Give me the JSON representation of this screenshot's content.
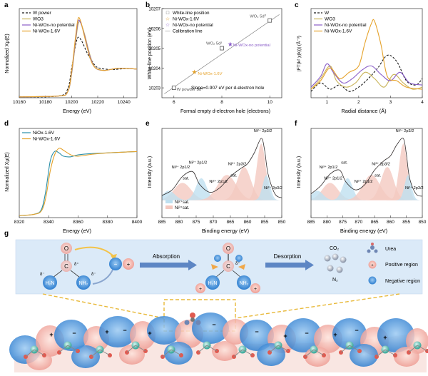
{
  "colors": {
    "black": "#1a1a1a",
    "wo3": "#c9b45a",
    "purple": "#8a5ec8",
    "orange": "#e5a22a",
    "teal": "#2a8fa8",
    "lightblue": "#bfe0f0",
    "lightpink": "#f4c9c0",
    "blue_lobe": "#2f7fd0",
    "pink_lobe": "#f0b9b0"
  },
  "panels": {
    "a": {
      "letter": "a",
      "legend": [
        "W power",
        "WO3",
        "Ni-WOx-no potential",
        "Ni-WOx-1.6V"
      ],
      "xlabel": "Energy (eV)",
      "ylabel": "Normalized Xμ(E)"
    },
    "b": {
      "letter": "b",
      "legend": [
        "White-line position",
        "Ni-WOx-1.6V",
        "Ni-WOx-no potential",
        "Calibration line"
      ],
      "xlabel": "Formal empty d-electron hole (electrons)",
      "ylabel": "White-line position (eV)",
      "slope_text": "Slope=0.907 eV per d-electron hole",
      "point_labels": [
        "W powder 5d⁴",
        "WO₂ 5d²",
        "WO₃ 5d⁰",
        "Ni-WOx-no potential",
        "Ni-WOx-1.6V"
      ]
    },
    "c": {
      "letter": "c",
      "legend": [
        "W",
        "WO3",
        "Ni-WOx-no potential",
        "Ni-WOx-1.6V"
      ],
      "xlabel": "Radial distance (Å)",
      "ylabel": "|FT(k² χ(k))| (Å⁻³)"
    },
    "d": {
      "letter": "d",
      "legend": [
        "NiOx-1.6V",
        "Ni-WOx-1.6V"
      ],
      "xlabel": "Energy (eV)",
      "ylabel": "Normalized Xμ(E)"
    },
    "e": {
      "letter": "e",
      "xlabel": "Binding energy (eV)",
      "ylabel": "Intensity (a.u.)",
      "legend": [
        "Ni²⁺sat.",
        "Ni³⁺sat."
      ],
      "peak_labels": [
        "Ni³⁺ 2p1/2",
        "Ni²⁺ 2p1/2",
        "sat.",
        "Ni²⁺ 2p1/2",
        "Ni³⁺ 2p3/2",
        "sat.",
        "Ni²⁺ 2p3/2",
        "Ni²⁺ 2p3/2"
      ]
    },
    "f": {
      "letter": "f",
      "xlabel": "Binding energy (eV)",
      "ylabel": "Intensity (a.u.)",
      "peak_labels": [
        "Ni³⁺ 2p1/2",
        "sat.",
        "Ni²⁺ 2p1/2",
        "Ni²⁺ 2p1/2",
        "Ni³⁺ 2p3/2",
        "sat.",
        "Ni²⁺ 2p3/2",
        "Ni²⁺ 2p3/2"
      ]
    },
    "g": {
      "letter": "g",
      "absorption": "Absorption",
      "desorption": "Desorption",
      "co2": "CO₂",
      "n2": "N₂",
      "legend_urea": "Urea",
      "legend_positive": "Positive region",
      "legend_negative": "Negative region",
      "atoms": {
        "o": "O",
        "c": "C",
        "h2n": "H₂N",
        "nh2": "NH₂",
        "delta_minus": "δ⁻",
        "delta_plus": "δ⁺",
        "plus": "+",
        "minus": "−"
      }
    }
  },
  "chart_data": [
    {
      "panel": "a",
      "type": "line",
      "xlabel": "Energy (eV)",
      "ylabel": "Normalized Xμ(E)",
      "xlim": [
        10160,
        10250
      ],
      "ylim": [
        0,
        3.1
      ],
      "xticks": [
        10160,
        10180,
        10200,
        10220,
        10240
      ],
      "series": [
        {
          "name": "W power",
          "style": "dash",
          "color": "#1a1a1a",
          "x": [
            10160,
            10190,
            10197,
            10200,
            10203,
            10205,
            10208,
            10212,
            10216,
            10220,
            10230,
            10240,
            10250
          ],
          "y": [
            0.03,
            0.06,
            0.3,
            1.0,
            1.8,
            2.1,
            1.95,
            1.55,
            1.25,
            1.05,
            0.98,
            1.01,
            1.0
          ]
        },
        {
          "name": "WO3",
          "style": "solid",
          "color": "#c9b45a",
          "x": [
            10160,
            10190,
            10197,
            10200,
            10203,
            10205,
            10207,
            10210,
            10214,
            10218,
            10225,
            10235,
            10250
          ],
          "y": [
            0.03,
            0.06,
            0.2,
            0.8,
            1.9,
            2.55,
            2.6,
            2.2,
            1.5,
            1.05,
            0.95,
            1.02,
            1.0
          ]
        },
        {
          "name": "Ni-WOx-no potential",
          "style": "solid",
          "color": "#8a5ec8",
          "x": [
            10160,
            10190,
            10197,
            10200,
            10203,
            10205,
            10207,
            10210,
            10214,
            10218,
            10225,
            10235,
            10250
          ],
          "y": [
            0.03,
            0.06,
            0.2,
            0.85,
            2.0,
            2.65,
            2.6,
            2.15,
            1.45,
            1.05,
            0.95,
            1.02,
            1.0
          ]
        },
        {
          "name": "Ni-WOx-1.6V",
          "style": "solid",
          "color": "#e5a22a",
          "x": [
            10160,
            10190,
            10197,
            10200,
            10203,
            10205,
            10207,
            10210,
            10214,
            10218,
            10225,
            10235,
            10250
          ],
          "y": [
            0.03,
            0.06,
            0.2,
            0.9,
            2.1,
            2.75,
            2.65,
            2.1,
            1.4,
            1.05,
            0.95,
            1.02,
            1.0
          ]
        }
      ]
    },
    {
      "panel": "b",
      "type": "scatter",
      "xlabel": "Formal empty d-electron hole (electrons)",
      "ylabel": "White-line position (eV)",
      "xlim": [
        5.5,
        10.5
      ],
      "ylim": [
        10202.5,
        10207
      ],
      "xticks": [
        6,
        8,
        10
      ],
      "yticks": [
        10203,
        10204,
        10205,
        10206,
        10207
      ],
      "points": [
        {
          "name": "W powder 5d⁴",
          "x": 6,
          "y": 10203
        },
        {
          "name": "WO₂ 5d²",
          "x": 8,
          "y": 10205
        },
        {
          "name": "WO₃ 5d⁰",
          "x": 10,
          "y": 10206.4
        },
        {
          "name": "Ni-WOx-no potential",
          "x": 8.35,
          "y": 10205.2
        },
        {
          "name": "Ni-WOx-1.6V",
          "x": 6.85,
          "y": 10203.8
        }
      ],
      "calibration_line": {
        "x": [
          5.6,
          10.4
        ],
        "y": [
          10202.7,
          10206.7
        ]
      }
    },
    {
      "panel": "c",
      "type": "line",
      "xlabel": "Radial distance (Å)",
      "ylabel": "|FT(k² χ(k))| (Å⁻³)",
      "xlim": [
        0.5,
        4
      ],
      "ylim": [
        0,
        4.2
      ],
      "xticks": [
        1,
        2,
        3,
        4
      ],
      "series": [
        {
          "name": "W",
          "style": "dash",
          "color": "#1a1a1a",
          "x": [
            0.5,
            0.8,
            1.1,
            1.4,
            1.7,
            2.0,
            2.3,
            2.6,
            2.9,
            3.2,
            3.5,
            3.8,
            4.0
          ],
          "y": [
            0.3,
            0.7,
            0.4,
            0.6,
            0.3,
            0.5,
            0.9,
            1.4,
            2.0,
            1.7,
            0.8,
            0.6,
            0.9
          ]
        },
        {
          "name": "WO3",
          "style": "solid",
          "color": "#c9b45a",
          "x": [
            0.5,
            0.8,
            1.1,
            1.3,
            1.6,
            1.9,
            2.2,
            2.5,
            2.8,
            3.1,
            3.4,
            3.7,
            4.0
          ],
          "y": [
            0.4,
            0.9,
            1.5,
            0.8,
            0.5,
            0.7,
            1.2,
            0.9,
            0.5,
            1.1,
            0.7,
            0.4,
            0.5
          ]
        },
        {
          "name": "Ni-WOx-no potential",
          "style": "solid",
          "color": "#8a5ec8",
          "x": [
            0.5,
            0.8,
            1.0,
            1.2,
            1.5,
            1.8,
            2.1,
            2.4,
            2.7,
            3.0,
            3.3,
            3.6,
            4.0
          ],
          "y": [
            0.5,
            1.0,
            1.6,
            1.2,
            0.7,
            0.9,
            1.3,
            1.5,
            1.1,
            0.8,
            1.2,
            0.7,
            0.6
          ]
        },
        {
          "name": "Ni-WOx-1.6V",
          "style": "solid",
          "color": "#e5a22a",
          "x": [
            0.5,
            0.8,
            1.1,
            1.4,
            1.7,
            2.0,
            2.2,
            2.4,
            2.5,
            2.7,
            2.9,
            3.2,
            3.5,
            4.0
          ],
          "y": [
            0.4,
            0.8,
            1.4,
            0.9,
            1.2,
            1.5,
            2.6,
            3.5,
            3.6,
            2.5,
            1.0,
            0.8,
            0.5,
            0.4
          ]
        }
      ]
    },
    {
      "panel": "d",
      "type": "line",
      "xlabel": "Energy (eV)",
      "ylabel": "Normalized Xμ(E)",
      "xlim": [
        8320,
        8400
      ],
      "ylim": [
        0,
        1.35
      ],
      "xticks": [
        8320,
        8340,
        8360,
        8380,
        8400
      ],
      "series": [
        {
          "name": "NiOx-1.6V",
          "style": "solid",
          "color": "#2a8fa8",
          "x": [
            8320,
            8330,
            8335,
            8338,
            8341,
            8344,
            8347,
            8350,
            8355,
            8360,
            8370,
            8380,
            8390,
            8400
          ],
          "y": [
            0.03,
            0.05,
            0.12,
            0.4,
            0.85,
            1.0,
            0.98,
            0.93,
            0.92,
            0.95,
            0.97,
            0.98,
            0.99,
            1.0
          ]
        },
        {
          "name": "Ni-WOx-1.6V",
          "style": "solid",
          "color": "#e5a22a",
          "x": [
            8320,
            8330,
            8335,
            8338,
            8341,
            8344,
            8347,
            8350,
            8355,
            8360,
            8370,
            8380,
            8390,
            8400
          ],
          "y": [
            0.03,
            0.05,
            0.1,
            0.3,
            0.7,
            0.95,
            1.05,
            1.02,
            0.95,
            0.93,
            0.96,
            0.98,
            0.99,
            1.0
          ]
        }
      ]
    },
    {
      "panel": "e",
      "type": "line",
      "xlabel": "Binding energy (eV)",
      "ylabel": "Intensity (a.u.)",
      "xlim": [
        885,
        850
      ],
      "xticks": [
        885,
        880,
        875,
        870,
        865,
        860,
        855,
        850
      ],
      "series": [
        {
          "name": "spectrum",
          "x": [
            885,
            882,
            879,
            876,
            874,
            871,
            868,
            865,
            862,
            860,
            858,
            856,
            855,
            854,
            852,
            850
          ],
          "y": [
            0.28,
            0.35,
            0.52,
            0.58,
            0.42,
            0.32,
            0.38,
            0.52,
            0.62,
            0.68,
            0.82,
            1.0,
            0.85,
            0.55,
            0.3,
            0.25
          ]
        }
      ]
    },
    {
      "panel": "f",
      "type": "line",
      "xlabel": "Binding energy (eV)",
      "ylabel": "Intensity (a.u.)",
      "xlim": [
        885,
        850
      ],
      "xticks": [
        885,
        880,
        875,
        870,
        865,
        860,
        855,
        850
      ],
      "series": [
        {
          "name": "spectrum",
          "x": [
            885,
            882,
            879,
            876,
            874,
            871,
            868,
            865,
            862,
            860,
            858,
            856,
            855,
            854,
            852,
            850
          ],
          "y": [
            0.3,
            0.4,
            0.55,
            0.6,
            0.45,
            0.35,
            0.42,
            0.6,
            0.72,
            0.78,
            0.92,
            1.0,
            0.8,
            0.5,
            0.3,
            0.27
          ]
        }
      ]
    }
  ]
}
